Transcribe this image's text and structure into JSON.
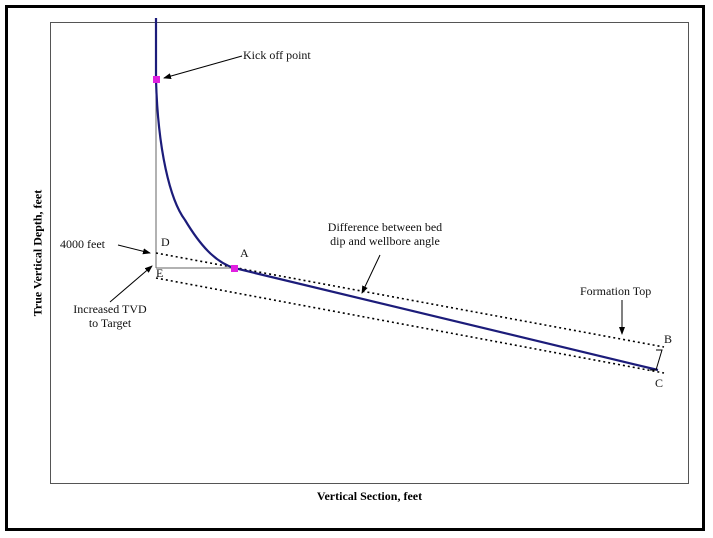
{
  "axes": {
    "x_label": "Vertical Section, feet",
    "y_label": "True Vertical Depth, feet"
  },
  "annotations": {
    "kickoff": "Kick off point",
    "difference_line1": "Difference between bed",
    "difference_line2": "dip and wellbore angle",
    "formation_top": "Formation Top",
    "depth": "4000 feet",
    "increased_tvd_line1": "Increased TVD",
    "increased_tvd_line2": "to Target"
  },
  "points": {
    "A": "A",
    "B": "B",
    "C": "C",
    "D": "D",
    "E": "E"
  },
  "colors": {
    "wellbore": "#1c1c7a",
    "marker": "#e020e0",
    "line": "#000000"
  }
}
